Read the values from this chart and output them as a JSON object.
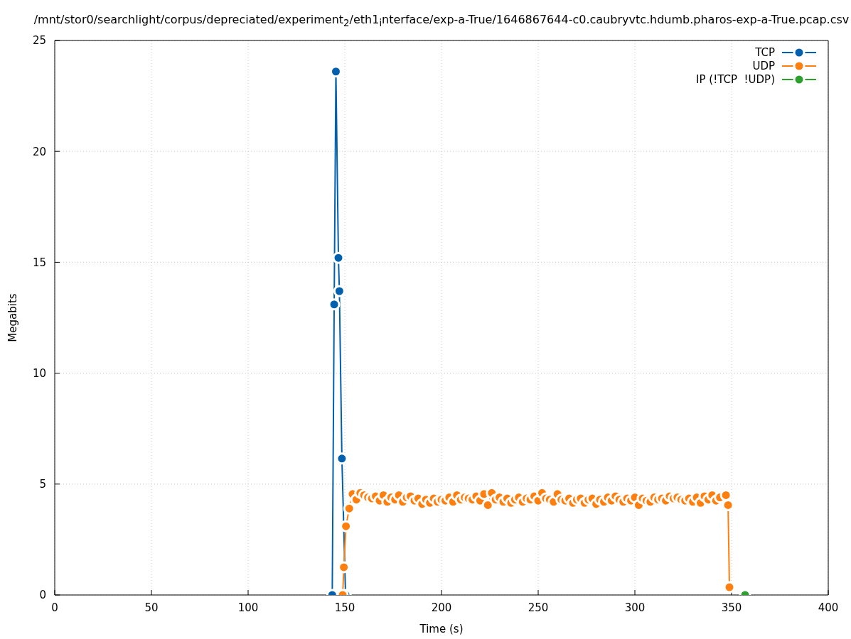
{
  "chart_data": {
    "type": "line",
    "title": "/mnt/stor0/searchlight/corpus/depreciated/experiment$_{2}$/eth1$_{i}$nterface/exp-a-True/1646867644-c0.caubryvtc.hdumb.pharos-exp-a-True.pcap.csv",
    "xlabel": "Time (s)",
    "ylabel": "Megabits",
    "xlim": [
      0,
      400
    ],
    "xticks": [
      0,
      50,
      100,
      150,
      200,
      250,
      300,
      350,
      400
    ],
    "ylim": [
      0,
      25
    ],
    "yticks": [
      0,
      5,
      10,
      15,
      20,
      25
    ],
    "grid": true,
    "legend": "top right",
    "marker": "circle",
    "line_style": "solid",
    "series": [
      {
        "name": "TCP",
        "color": "#0060ad",
        "x": [
          143.5,
          144.5,
          145.4,
          146.7,
          147.2,
          148.5,
          150.4
        ],
        "values": [
          0,
          13.1,
          23.6,
          15.2,
          13.7,
          6.15,
          0
        ]
      },
      {
        "name": "UDP",
        "color": "#ff7f0e",
        "x": [
          148.9,
          149.5,
          150.6,
          152.3,
          154,
          156,
          158,
          160,
          162,
          164,
          166,
          168,
          170,
          172,
          174,
          176,
          178,
          180,
          182,
          184,
          186,
          188,
          190,
          192,
          194,
          196,
          198,
          200,
          202,
          204,
          206,
          208,
          210,
          212,
          214,
          216,
          218,
          220,
          222,
          224,
          226,
          228,
          230,
          232,
          234,
          236,
          238,
          240,
          242,
          244,
          246,
          248,
          250,
          252,
          254,
          256,
          258,
          260,
          262,
          264,
          266,
          268,
          270,
          272,
          274,
          276,
          278,
          280,
          282,
          284,
          286,
          288,
          290,
          292,
          294,
          296,
          298,
          300,
          302,
          304,
          306,
          308,
          310,
          312,
          314,
          316,
          318,
          320,
          322,
          324,
          326,
          328,
          330,
          332,
          334,
          336,
          338,
          340,
          342,
          344,
          347.1,
          348.2,
          348.9
        ],
        "values": [
          0,
          1.25,
          3.1,
          3.9,
          4.55,
          4.3,
          4.6,
          4.5,
          4.4,
          4.35,
          4.45,
          4.25,
          4.5,
          4.2,
          4.4,
          4.3,
          4.5,
          4.2,
          4.4,
          4.45,
          4.25,
          4.35,
          4.1,
          4.3,
          4.15,
          4.35,
          4.2,
          4.3,
          4.25,
          4.4,
          4.2,
          4.5,
          4.3,
          4.4,
          4.35,
          4.3,
          4.45,
          4.25,
          4.55,
          4.05,
          4.6,
          4.3,
          4.4,
          4.2,
          4.35,
          4.15,
          4.3,
          4.4,
          4.2,
          4.35,
          4.3,
          4.45,
          4.25,
          4.6,
          4.35,
          4.3,
          4.2,
          4.55,
          4.3,
          4.25,
          4.35,
          4.15,
          4.3,
          4.35,
          4.15,
          4.3,
          4.35,
          4.1,
          4.3,
          4.2,
          4.4,
          4.25,
          4.45,
          4.3,
          4.2,
          4.35,
          4.25,
          4.4,
          4.05,
          4.35,
          4.25,
          4.2,
          4.4,
          4.3,
          4.35,
          4.25,
          4.45,
          4.35,
          4.4,
          4.3,
          4.25,
          4.35,
          4.2,
          4.4,
          4.15,
          4.45,
          4.3,
          4.5,
          4.25,
          4.4,
          4.5,
          4.05,
          0.35
        ]
      },
      {
        "name": "IP (!TCP  !UDP)",
        "color": "#2ca02c",
        "x": [
          357
        ],
        "values": [
          0
        ]
      }
    ]
  }
}
